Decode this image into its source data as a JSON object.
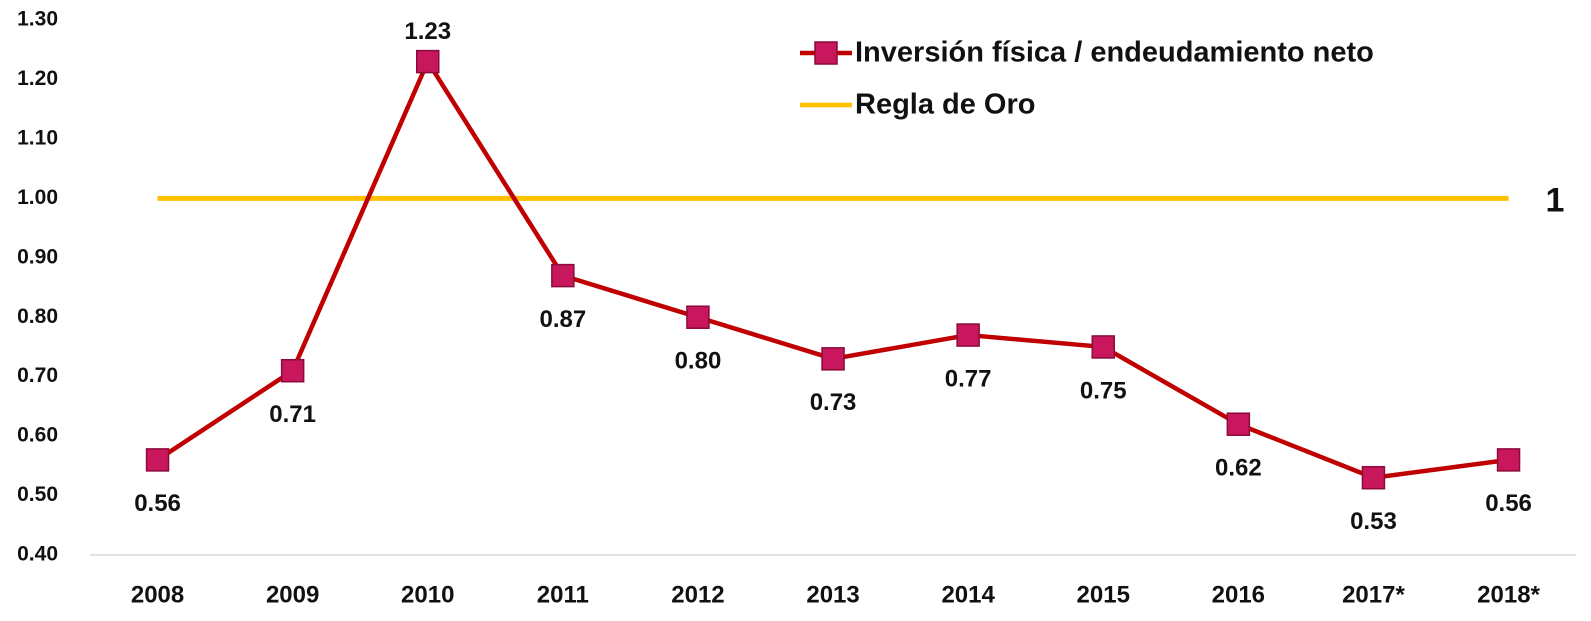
{
  "chart_data": {
    "type": "line",
    "categories": [
      "2008",
      "2009",
      "2010",
      "2011",
      "2012",
      "2013",
      "2014",
      "2015",
      "2016",
      "2017*",
      "2018*"
    ],
    "series": [
      {
        "name": "Inversión física / endeudamiento neto",
        "color": "#c00000",
        "marker_color": "#c8175d",
        "values": [
          0.56,
          0.71,
          1.23,
          0.87,
          0.8,
          0.73,
          0.77,
          0.75,
          0.62,
          0.53,
          0.56
        ],
        "value_labels": [
          "0.56",
          "0.71",
          "1.23",
          "0.87",
          "0.80",
          "0.73",
          "0.77",
          "0.75",
          "0.62",
          "0.53",
          "0.56"
        ]
      },
      {
        "name": "Regla de Oro",
        "color": "#ffc000",
        "values": [
          1,
          1,
          1,
          1,
          1,
          1,
          1,
          1,
          1,
          1,
          1
        ]
      }
    ],
    "ylim": [
      0.4,
      1.3
    ],
    "yticks": [
      {
        "value": 0.4,
        "label": "0.40"
      },
      {
        "value": 0.5,
        "label": "0.50"
      },
      {
        "value": 0.6,
        "label": "0.60"
      },
      {
        "value": 0.7,
        "label": "0.70"
      },
      {
        "value": 0.8,
        "label": "0.80"
      },
      {
        "value": 0.9,
        "label": "0.90"
      },
      {
        "value": 1.0,
        "label": "1.00"
      },
      {
        "value": 1.1,
        "label": "1.10"
      },
      {
        "value": 1.2,
        "label": "1.20"
      },
      {
        "value": 1.3,
        "label": "1.30"
      }
    ],
    "grid": false
  }
}
